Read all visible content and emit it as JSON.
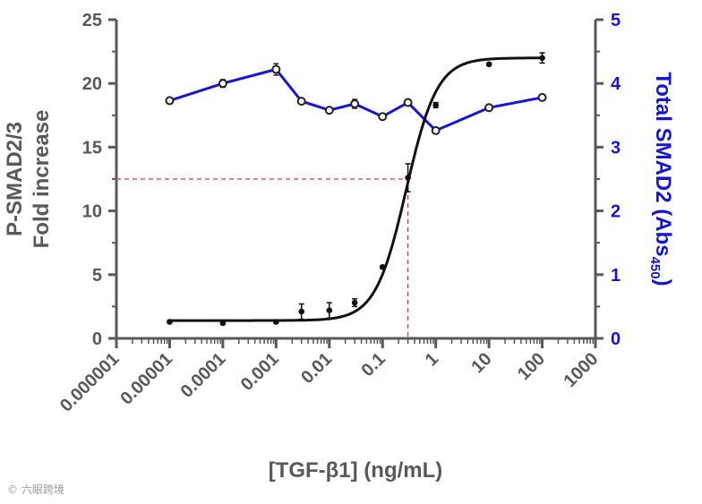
{
  "chart_data": {
    "type": "line",
    "x_scale": "log",
    "xlabel": "[TGF-β1] (ng/mL)",
    "xlim": [
      1e-06,
      1000
    ],
    "x_tick_labels": [
      "0.000001",
      "0.00001",
      "0.0001",
      "0.001",
      "0.01",
      "0.1",
      "1",
      "10",
      "100",
      "1000"
    ],
    "ylabel_left_line1": "P-SMAD2/3",
    "ylabel_left_line2": "Fold increase",
    "ylim_left": [
      0,
      25
    ],
    "y_left_tick_labels": [
      "0",
      "5",
      "10",
      "15",
      "20",
      "25"
    ],
    "ylabel_right": "Total SMAD2  (Abs",
    "ylabel_right_sub": "450",
    "ylabel_right_close": ")",
    "ylim_right": [
      0,
      5
    ],
    "y_right_tick_labels": [
      "0",
      "1",
      "2",
      "3",
      "4",
      "5"
    ],
    "grid": false,
    "colors": {
      "black_series": "#111111",
      "blue_series": "#1515d8",
      "right_axis": "#1515d8",
      "guide": "#e23030",
      "axis": "#595959"
    },
    "series": [
      {
        "axis": "left",
        "style": "points with error bars and sigmoidal fit",
        "x": [
          1e-05,
          0.0001,
          0.001,
          0.003,
          0.01,
          0.03,
          0.1,
          0.3,
          1,
          10,
          100
        ],
        "y": [
          1.3,
          1.2,
          1.3,
          2.1,
          2.2,
          2.8,
          5.6,
          12.6,
          18.3,
          21.5,
          22.0
        ],
        "error": [
          0.1,
          0.1,
          0.1,
          0.6,
          0.6,
          0.3,
          0.1,
          1.1,
          0.2,
          0.1,
          0.4
        ],
        "fit": {
          "bottom": 1.4,
          "top": 22.0,
          "ec50": 0.28,
          "hill": 1.5
        }
      },
      {
        "axis": "right",
        "style": "open circles connected by line",
        "x": [
          1e-05,
          0.0001,
          0.001,
          0.003,
          0.01,
          0.03,
          0.1,
          0.3,
          1,
          10,
          100
        ],
        "y": [
          3.73,
          4.0,
          4.22,
          3.72,
          3.58,
          3.68,
          3.48,
          3.7,
          3.26,
          3.62,
          3.78
        ],
        "error": [
          0.03,
          0.06,
          0.09,
          0.04,
          0.04,
          0.07,
          0.04,
          0.04,
          0.03,
          0.04,
          0.04
        ]
      }
    ],
    "reference_lines": {
      "x": 0.3,
      "y": 12.5
    }
  },
  "watermark": "© 六眼跨境"
}
